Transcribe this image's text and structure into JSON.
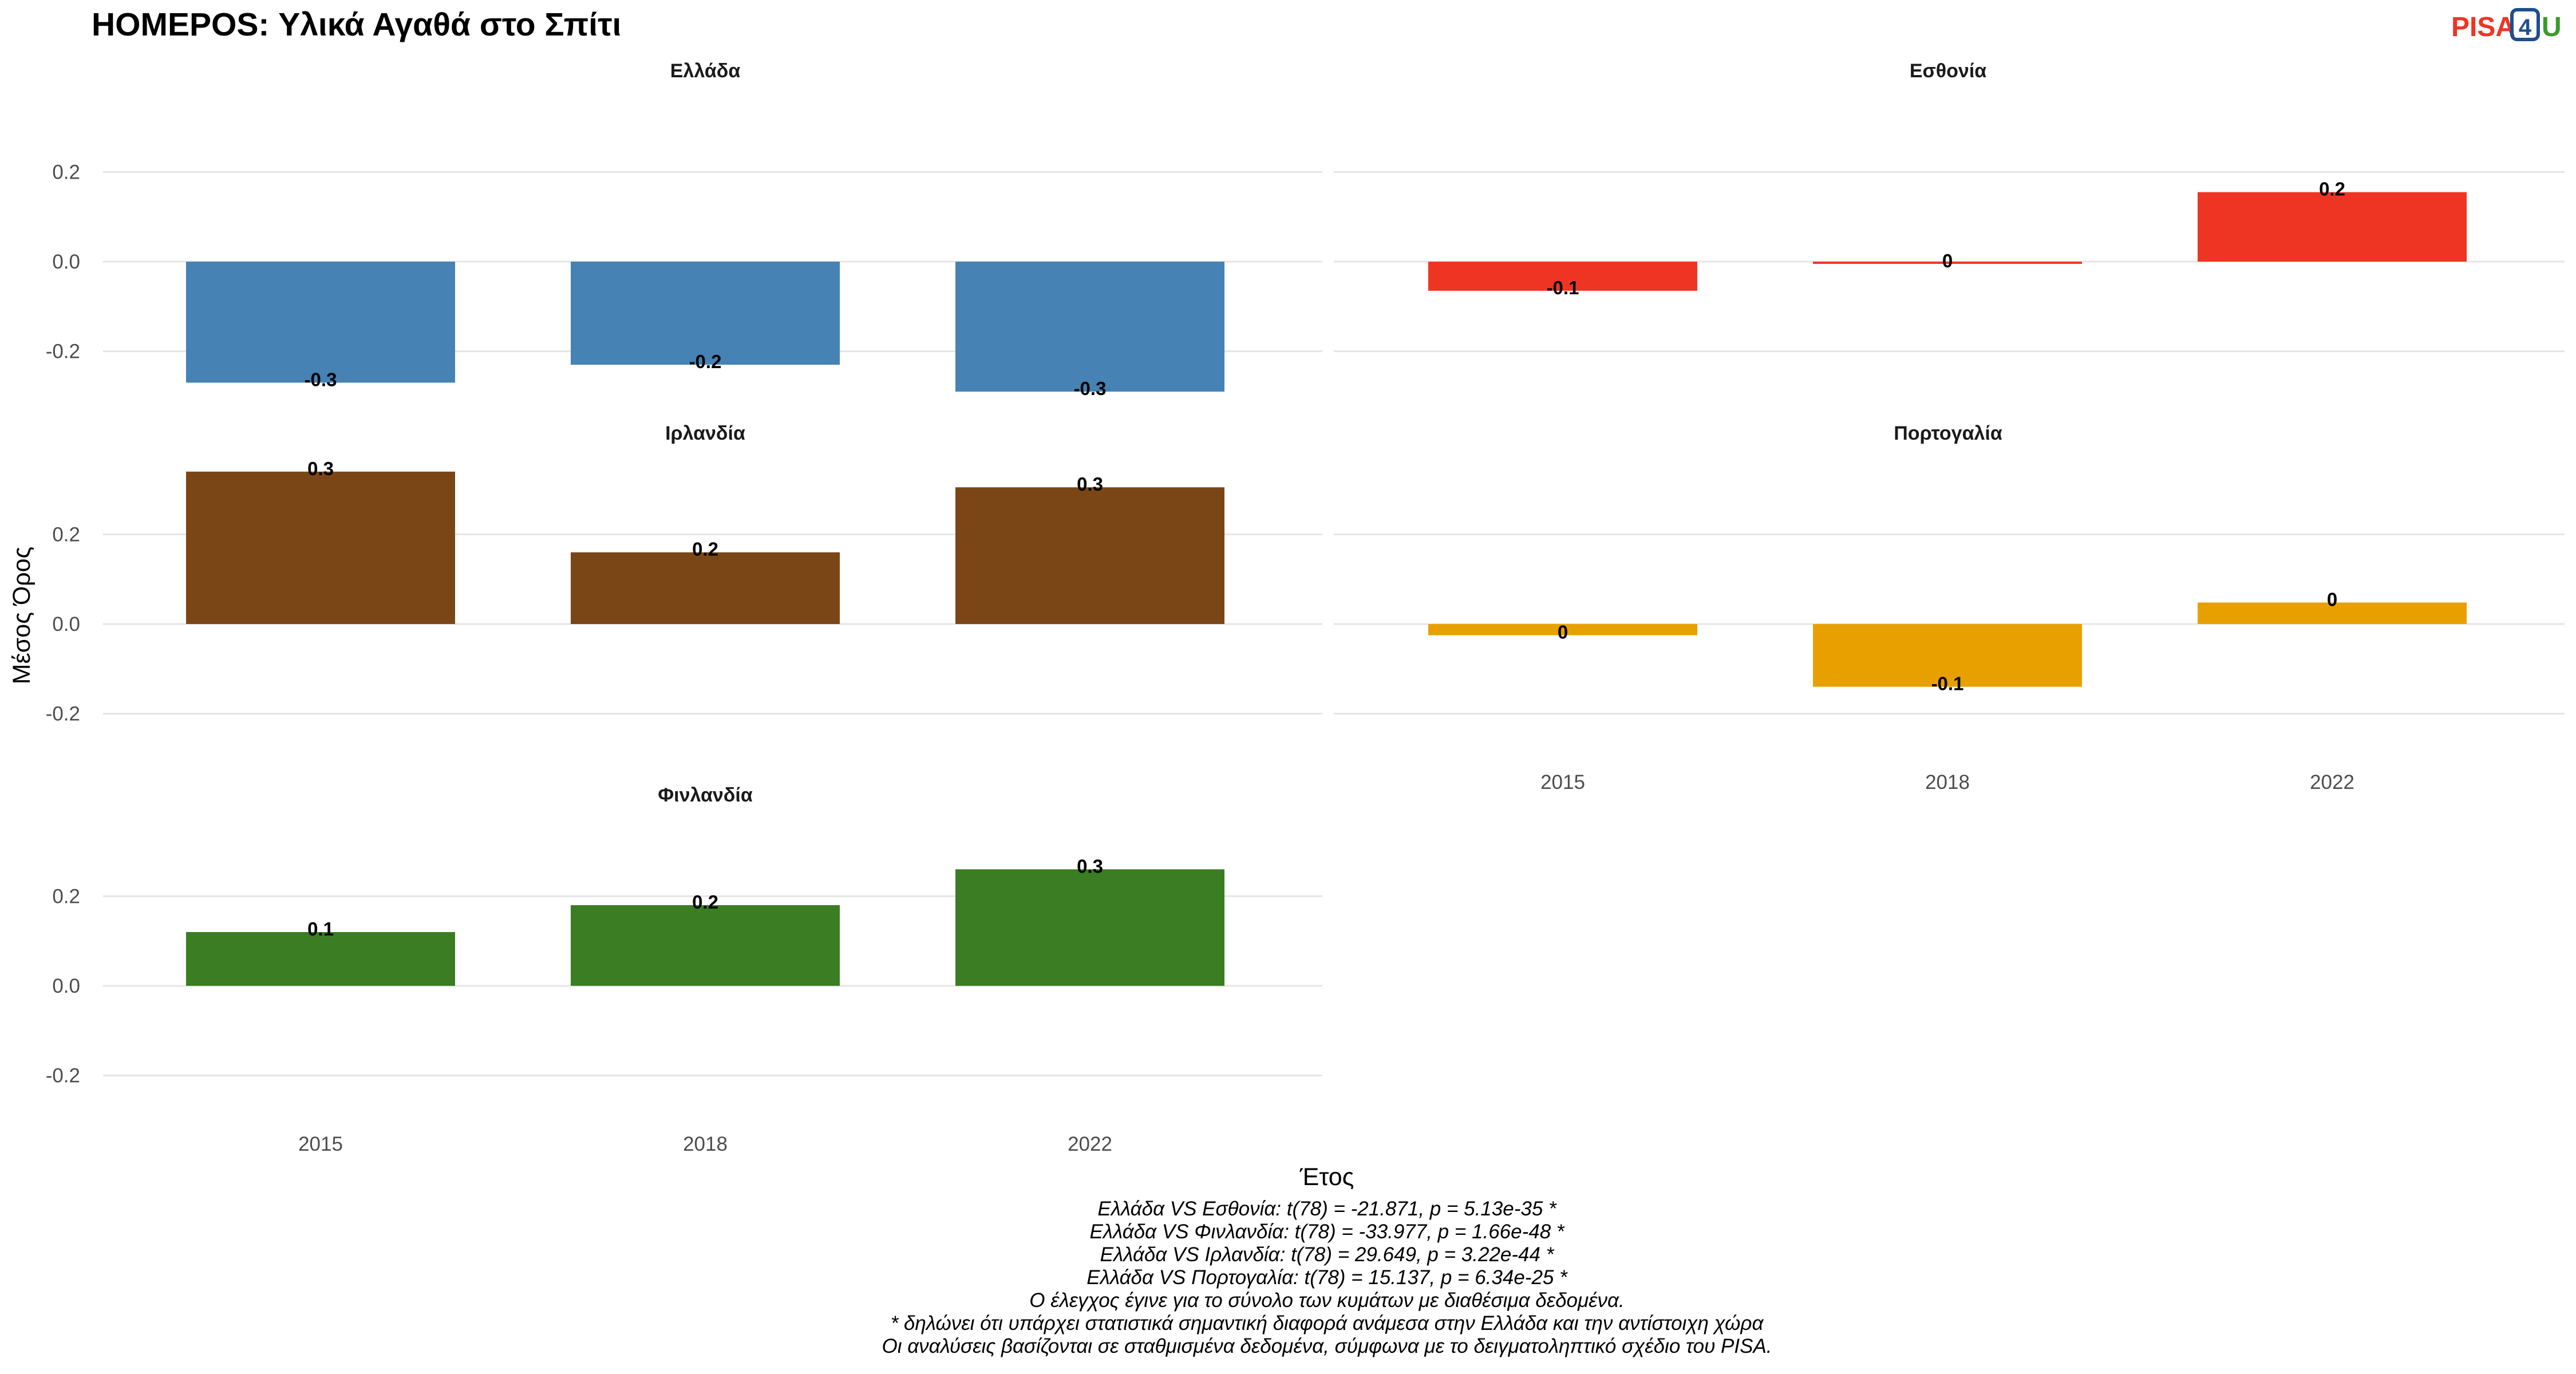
{
  "chart_data": {
    "type": "bar",
    "title": "HOMEPOS: Υλικά Αγαθά στο Σπίτι",
    "xlabel": "Έτος",
    "ylabel": "Μέσος Όρος",
    "categories": [
      "2015",
      "2018",
      "2022"
    ],
    "ylim": [
      -0.3,
      0.35
    ],
    "yticks": [
      -0.2,
      0.0,
      0.2
    ],
    "ytick_labels": [
      "-0.2",
      "0.0",
      "0.2"
    ],
    "grid": true,
    "panels": [
      {
        "name": "Ελλάδα",
        "color": "#4682B4",
        "values": [
          -0.27,
          -0.23,
          -0.29
        ],
        "labels": [
          "-0.3",
          "-0.2",
          "-0.3"
        ]
      },
      {
        "name": "Εσθονία",
        "color": "#EE3524",
        "values": [
          -0.065,
          -0.005,
          0.155
        ],
        "labels": [
          "-0.1",
          "0",
          "0.2"
        ]
      },
      {
        "name": "Ιρλανδία",
        "color": "#7B4616",
        "values": [
          0.34,
          0.16,
          0.305
        ],
        "labels": [
          "0.3",
          "0.2",
          "0.3"
        ]
      },
      {
        "name": "Πορτογαλία",
        "color": "#E8A000",
        "values": [
          -0.025,
          -0.14,
          0.048
        ],
        "labels": [
          "0",
          "-0.1",
          "0"
        ]
      },
      {
        "name": "Φινλανδία",
        "color": "#3A7D22",
        "values": [
          0.12,
          0.18,
          0.26
        ],
        "labels": [
          "0.1",
          "0.2",
          "0.3"
        ]
      }
    ],
    "caption_lines": [
      "Ελλάδα VS Εσθονία: t(78) = -21.871, p = 5.13e-35 *",
      "Ελλάδα VS Φινλανδία: t(78) = -33.977, p = 1.66e-48 *",
      "Ελλάδα VS Ιρλανδία: t(78) = 29.649, p = 3.22e-44 *",
      "Ελλάδα VS Πορτογαλία: t(78) = 15.137, p = 6.34e-25 *",
      "Ο έλεγχος έγινε για το σύνολο των κυμάτων με διαθέσιμα δεδομένα.",
      "* δηλώνει ότι υπάρχει στατιστικά σημαντική διαφορά ανάμεσα στην Ελλάδα και την αντίστοιχη χώρα",
      "Οι αναλύσεις βασίζονται σε σταθμισμένα δεδομένα, σύμφωνα με το δειγματοληπτικό σχέδιο του PISA."
    ]
  },
  "logo": {
    "text_a": "PISA",
    "text_b": "4",
    "text_c": "U",
    "color_a": "#EE3524",
    "color_b": "#1F4E8C",
    "color_c": "#3A9A2A"
  }
}
